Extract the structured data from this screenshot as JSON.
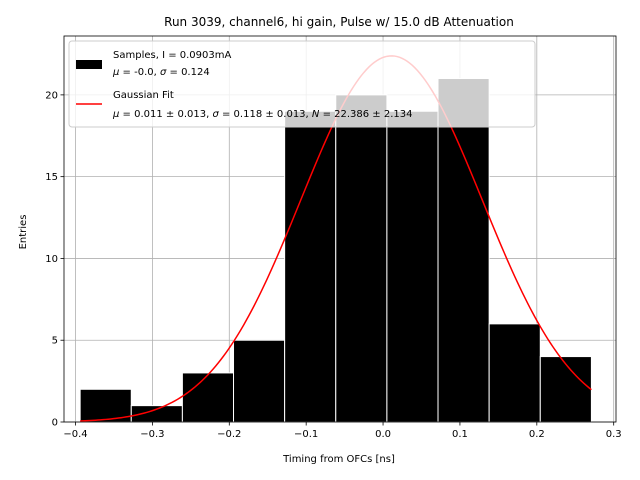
{
  "chart_data": {
    "type": "bar",
    "title": "Run 3039, channel6, hi gain, Pulse w/ 15.0 dB Attenuation",
    "xlabel": "Timing from OFCs [ns]",
    "ylabel": "Entries",
    "xlim": [
      -0.415,
      0.303
    ],
    "ylim": [
      0,
      23.6
    ],
    "xticks": [
      -0.4,
      -0.3,
      -0.2,
      -0.1,
      0.0,
      0.1,
      0.2,
      0.3
    ],
    "xtick_labels": [
      "−0.4",
      "−0.3",
      "−0.2",
      "−0.1",
      "0.0",
      "0.1",
      "0.2",
      "0.3"
    ],
    "yticks": [
      0,
      5,
      10,
      15,
      20
    ],
    "ytick_labels": [
      "0",
      "5",
      "10",
      "15",
      "20"
    ],
    "grid": true,
    "legend_position": "top-left",
    "histogram": {
      "bin_edges": [
        -0.394,
        -0.3275,
        -0.261,
        -0.1945,
        -0.128,
        -0.0615,
        0.005,
        0.0715,
        0.138,
        0.2045,
        0.271
      ],
      "counts": [
        2,
        1,
        3,
        5,
        19,
        20,
        19,
        21,
        6,
        4
      ],
      "color": "#000000",
      "edgecolor": "#ffffff"
    },
    "gaussian_fit": {
      "mu": 0.011,
      "sigma": 0.118,
      "N": 22.386,
      "x_range": [
        -0.394,
        0.271
      ],
      "color": "#ff0000"
    },
    "legend": [
      {
        "label_main": "Samples, I = 0.0903mA",
        "label_stats": [
          "μ",
          " = -0.0, ",
          "σ",
          " = 0.124"
        ],
        "swatch": "box",
        "color": "#000000"
      },
      {
        "label_main": "Gaussian Fit",
        "label_stats": [
          "μ",
          " = 0.011 ± 0.013, ",
          "σ",
          " = 0.118 ± 0.013, ",
          "N",
          " = 22.386 ± 2.134"
        ],
        "swatch": "line",
        "color": "#ff0000"
      }
    ]
  }
}
